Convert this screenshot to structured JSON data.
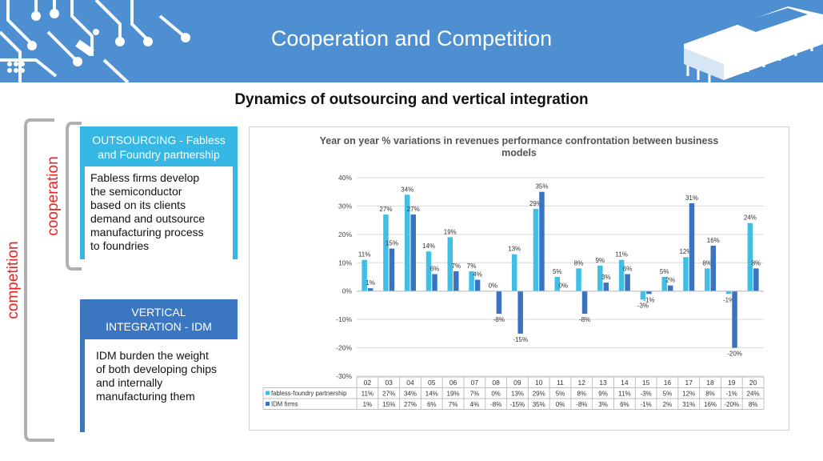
{
  "header": {
    "title": "Cooperation and Competition"
  },
  "subtitle": "Dynamics of outsourcing and vertical integration",
  "labels": {
    "competition": "competition",
    "cooperation": "cooperation"
  },
  "outsourcing": {
    "title_line1": "OUTSOURCING - Fabless",
    "title_line2": "and Foundry partnership",
    "body": [
      "Fabless firms develop",
      "the semiconductor",
      "based on its clients",
      "demand and outsource",
      "manufacturing process",
      "to foundries"
    ]
  },
  "idm": {
    "title_line1": "VERTICAL",
    "title_line2": "INTEGRATION - IDM",
    "body": [
      "IDM burden the weight",
      "of both developing chips",
      "and internally",
      "manufacturing them"
    ]
  },
  "colors": {
    "header": "#4d8fd1",
    "fabless": "#40bfe6",
    "idm": "#3a73c0",
    "label_red": "#e32626"
  },
  "chart_data": {
    "type": "bar",
    "title_line1": "Year on year % variations in revenues performance confrontation between business",
    "title_line2": "models",
    "categories": [
      "02",
      "03",
      "04",
      "05",
      "06",
      "07",
      "08",
      "09",
      "10",
      "11",
      "12",
      "13",
      "14",
      "15",
      "16",
      "17",
      "18",
      "19",
      "20"
    ],
    "series": [
      {
        "name": "fabless-foundry partnership",
        "values": [
          11,
          27,
          34,
          14,
          19,
          7,
          0,
          13,
          29,
          5,
          8,
          9,
          11,
          -3,
          5,
          12,
          8,
          -1,
          24
        ],
        "labels": [
          "11%",
          "27%",
          "34%",
          "14%",
          "19%",
          "7%",
          "0%",
          "13%",
          "29%",
          "5%",
          "8%",
          "9%",
          "11%",
          "-3%",
          "5%",
          "12%",
          "8%",
          "-1%",
          "24%"
        ]
      },
      {
        "name": "IDM firms",
        "values": [
          1,
          15,
          27,
          6,
          7,
          4,
          -8,
          -15,
          35,
          0,
          -8,
          3,
          6,
          -1,
          2,
          31,
          16,
          -20,
          8
        ],
        "labels": [
          "1%",
          "15%",
          "27%",
          "6%",
          "7%",
          "4%",
          "-8%",
          "-15%",
          "35%",
          "0%",
          "-8%",
          "3%",
          "6%",
          "-1%",
          "2%",
          "31%",
          "16%",
          "-20%",
          "8%"
        ]
      }
    ],
    "ylim": [
      -30,
      40
    ],
    "yticks": [
      "40%",
      "30%",
      "20%",
      "10%",
      "0%",
      "-10%",
      "-20%",
      "-30%"
    ],
    "grid": true,
    "legend": "data table below chart"
  }
}
